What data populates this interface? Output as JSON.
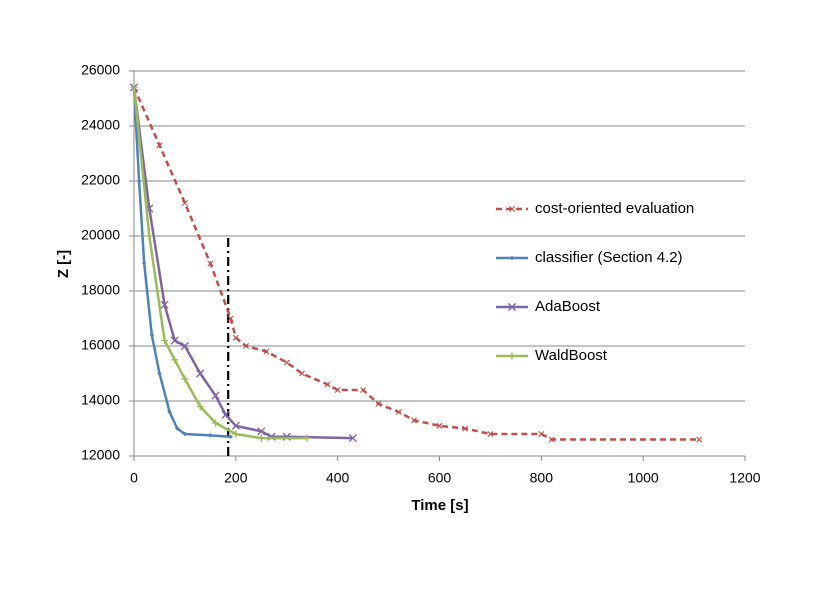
{
  "chart_data": {
    "type": "line",
    "x_label": "Time [s]",
    "y_label": "Z [-]",
    "xlim": [
      0,
      1200
    ],
    "xticks": [
      0,
      200,
      400,
      600,
      800,
      1000,
      1200
    ],
    "ylim": [
      12000,
      26000
    ],
    "yticks": [
      12000,
      14000,
      16000,
      18000,
      20000,
      22000,
      24000,
      26000
    ],
    "grid": true,
    "legend": "right",
    "vline": {
      "x": 185,
      "y": [
        12000,
        20000
      ],
      "color": "#000000"
    },
    "series": [
      {
        "name": "cost-oriented evaluation",
        "color": "#c0504d",
        "dashed": true,
        "marker": "x",
        "x": [
          0,
          50,
          100,
          150,
          190,
          200,
          220,
          260,
          300,
          330,
          380,
          400,
          450,
          480,
          520,
          550,
          600,
          650,
          700,
          800,
          820,
          1110
        ],
        "values": [
          25400,
          23300,
          21200,
          19000,
          17000,
          16300,
          16000,
          15800,
          15400,
          15000,
          14600,
          14400,
          14400,
          13900,
          13600,
          13300,
          13100,
          13000,
          12800,
          12800,
          12600,
          12600
        ]
      },
      {
        "name": "classifier (Section 4.2)",
        "color": "#4f81bd",
        "dashed": false,
        "marker": "diamond",
        "x": [
          0,
          10,
          20,
          35,
          50,
          70,
          85,
          100,
          150,
          190
        ],
        "values": [
          25400,
          22000,
          19000,
          16400,
          15000,
          13600,
          13000,
          12800,
          12750,
          12700
        ]
      },
      {
        "name": "AdaBoost",
        "color": "#8064a2",
        "dashed": false,
        "marker": "x",
        "x": [
          0,
          30,
          60,
          80,
          100,
          130,
          160,
          180,
          200,
          250,
          270,
          300,
          430
        ],
        "values": [
          25400,
          21000,
          17500,
          16200,
          16000,
          15000,
          14200,
          13500,
          13100,
          12900,
          12700,
          12700,
          12650
        ]
      },
      {
        "name": "WaldBoost",
        "color": "#9bbb59",
        "dashed": false,
        "marker": "plus",
        "x": [
          0,
          30,
          60,
          80,
          100,
          130,
          160,
          200,
          250,
          340
        ],
        "values": [
          25400,
          20000,
          16200,
          15500,
          14800,
          13800,
          13200,
          12800,
          12650,
          12650
        ]
      }
    ]
  }
}
